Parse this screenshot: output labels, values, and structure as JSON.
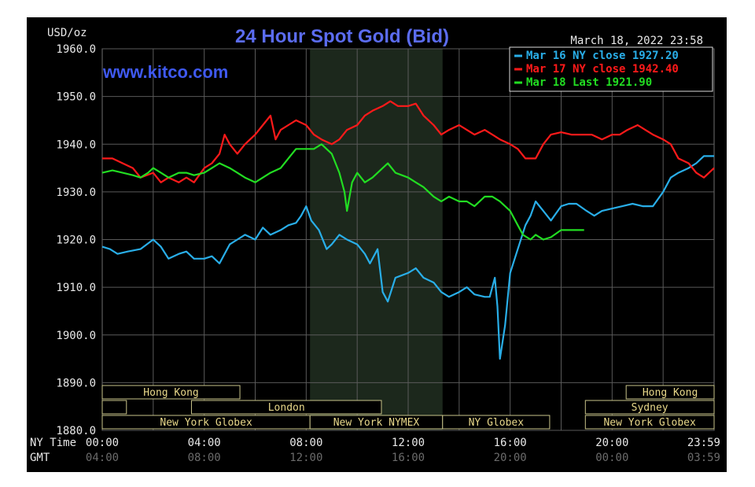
{
  "chart_data": {
    "type": "line",
    "title": "24 Hour Spot Gold (Bid)",
    "watermark": "www.kitco.com",
    "timestamp": "March 18, 2022 23:58",
    "ylabel": "USD/oz",
    "ylim": [
      1880,
      1960
    ],
    "yticks": [
      "1960.0",
      "1950.0",
      "1940.0",
      "1930.0",
      "1920.0",
      "1910.0",
      "1900.0",
      "1890.0",
      "1880.0"
    ],
    "xlim": [
      0,
      24
    ],
    "xticks": [
      {
        "x": 0,
        "ny": "00:00",
        "gmt": "04:00"
      },
      {
        "x": 4,
        "ny": "04:00",
        "gmt": "08:00"
      },
      {
        "x": 8,
        "ny": "08:00",
        "gmt": "12:00"
      },
      {
        "x": 12,
        "ny": "12:00",
        "gmt": "16:00"
      },
      {
        "x": 16,
        "ny": "16:00",
        "gmt": "20:00"
      },
      {
        "x": 20,
        "ny": "20:00",
        "gmt": "00:00"
      },
      {
        "x": 24,
        "ny": "23:59",
        "gmt": "03:59"
      }
    ],
    "x_row_labels": {
      "ny": "NY Time",
      "gmt": "GMT"
    },
    "grid": true,
    "legend_position": "top-right",
    "series": [
      {
        "name": "Mar 16 NY close 1927.20",
        "color": "#29aee8",
        "points": [
          [
            0,
            1918.5
          ],
          [
            0.3,
            1918
          ],
          [
            0.6,
            1917
          ],
          [
            1,
            1917.5
          ],
          [
            1.5,
            1918
          ],
          [
            2,
            1920
          ],
          [
            2.3,
            1918.5
          ],
          [
            2.6,
            1916
          ],
          [
            3,
            1917
          ],
          [
            3.3,
            1917.5
          ],
          [
            3.6,
            1916
          ],
          [
            4,
            1916
          ],
          [
            4.3,
            1916.5
          ],
          [
            4.6,
            1915
          ],
          [
            5,
            1919
          ],
          [
            5.3,
            1920
          ],
          [
            5.6,
            1921
          ],
          [
            6,
            1920
          ],
          [
            6.3,
            1922.5
          ],
          [
            6.6,
            1921
          ],
          [
            7,
            1922
          ],
          [
            7.3,
            1923
          ],
          [
            7.6,
            1923.5
          ],
          [
            7.8,
            1925
          ],
          [
            8,
            1927
          ],
          [
            8.2,
            1924
          ],
          [
            8.5,
            1922
          ],
          [
            8.8,
            1918
          ],
          [
            9,
            1919
          ],
          [
            9.3,
            1921
          ],
          [
            9.6,
            1920
          ],
          [
            10,
            1919
          ],
          [
            10.3,
            1917
          ],
          [
            10.5,
            1915
          ],
          [
            10.8,
            1918
          ],
          [
            11,
            1909
          ],
          [
            11.2,
            1907
          ],
          [
            11.5,
            1912
          ],
          [
            12,
            1913
          ],
          [
            12.3,
            1914
          ],
          [
            12.6,
            1912
          ],
          [
            13,
            1911
          ],
          [
            13.3,
            1909
          ],
          [
            13.6,
            1908
          ],
          [
            14,
            1909
          ],
          [
            14.3,
            1910
          ],
          [
            14.6,
            1908.5
          ],
          [
            15,
            1908
          ],
          [
            15.2,
            1908
          ],
          [
            15.4,
            1912
          ],
          [
            15.5,
            1906
          ],
          [
            15.6,
            1895
          ],
          [
            15.8,
            1902
          ],
          [
            16,
            1913
          ],
          [
            16.3,
            1918
          ],
          [
            16.6,
            1923
          ],
          [
            16.8,
            1925
          ],
          [
            17,
            1928
          ],
          [
            17.3,
            1926
          ],
          [
            17.6,
            1924
          ],
          [
            18,
            1927
          ],
          [
            18.3,
            1927.5
          ],
          [
            18.6,
            1927.5
          ],
          [
            19,
            1926
          ],
          [
            19.3,
            1925
          ],
          [
            19.6,
            1926
          ],
          [
            20,
            1926.5
          ],
          [
            20.4,
            1927
          ],
          [
            20.8,
            1927.5
          ],
          [
            21.2,
            1927
          ],
          [
            21.6,
            1927
          ],
          [
            22,
            1930
          ],
          [
            22.3,
            1933
          ],
          [
            22.6,
            1934
          ],
          [
            23,
            1935
          ],
          [
            23.3,
            1936
          ],
          [
            23.6,
            1937.5
          ],
          [
            24,
            1937.5
          ]
        ]
      },
      {
        "name": "Mar 17 NY close 1942.40",
        "color": "#ff1a1a",
        "points": [
          [
            0,
            1937
          ],
          [
            0.4,
            1937
          ],
          [
            0.8,
            1936
          ],
          [
            1.2,
            1935
          ],
          [
            1.5,
            1933
          ],
          [
            2,
            1934
          ],
          [
            2.3,
            1932
          ],
          [
            2.6,
            1933
          ],
          [
            3,
            1932
          ],
          [
            3.3,
            1933
          ],
          [
            3.6,
            1932
          ],
          [
            4,
            1935
          ],
          [
            4.3,
            1936
          ],
          [
            4.6,
            1938
          ],
          [
            4.8,
            1942
          ],
          [
            5,
            1940
          ],
          [
            5.3,
            1938
          ],
          [
            5.6,
            1940
          ],
          [
            6,
            1942
          ],
          [
            6.3,
            1944
          ],
          [
            6.6,
            1946
          ],
          [
            6.8,
            1941
          ],
          [
            7,
            1943
          ],
          [
            7.3,
            1944
          ],
          [
            7.6,
            1945
          ],
          [
            8,
            1944
          ],
          [
            8.3,
            1942
          ],
          [
            8.6,
            1941
          ],
          [
            9,
            1940
          ],
          [
            9.3,
            1941
          ],
          [
            9.6,
            1943
          ],
          [
            10,
            1944
          ],
          [
            10.3,
            1946
          ],
          [
            10.6,
            1947
          ],
          [
            11,
            1948
          ],
          [
            11.3,
            1949
          ],
          [
            11.6,
            1948
          ],
          [
            12,
            1948
          ],
          [
            12.3,
            1948.5
          ],
          [
            12.6,
            1946
          ],
          [
            13,
            1944
          ],
          [
            13.3,
            1942
          ],
          [
            13.6,
            1943
          ],
          [
            14,
            1944
          ],
          [
            14.3,
            1943
          ],
          [
            14.6,
            1942
          ],
          [
            15,
            1943
          ],
          [
            15.3,
            1942
          ],
          [
            15.6,
            1941
          ],
          [
            16,
            1940
          ],
          [
            16.3,
            1939
          ],
          [
            16.6,
            1937
          ],
          [
            17,
            1937
          ],
          [
            17.3,
            1940
          ],
          [
            17.6,
            1942
          ],
          [
            18,
            1942.5
          ],
          [
            18.4,
            1942
          ],
          [
            18.8,
            1942
          ],
          [
            19.2,
            1942
          ],
          [
            19.6,
            1941
          ],
          [
            20,
            1942
          ],
          [
            20.3,
            1942
          ],
          [
            20.6,
            1943
          ],
          [
            21,
            1944
          ],
          [
            21.3,
            1943
          ],
          [
            21.6,
            1942
          ],
          [
            22,
            1941
          ],
          [
            22.3,
            1940
          ],
          [
            22.6,
            1937
          ],
          [
            23,
            1936
          ],
          [
            23.3,
            1934
          ],
          [
            23.6,
            1933
          ],
          [
            24,
            1935
          ]
        ]
      },
      {
        "name": "Mar 18 Last 1921.90",
        "color": "#22dd22",
        "points": [
          [
            0,
            1934
          ],
          [
            0.4,
            1934.5
          ],
          [
            0.8,
            1934
          ],
          [
            1.2,
            1933.5
          ],
          [
            1.5,
            1933
          ],
          [
            1.8,
            1934
          ],
          [
            2,
            1935
          ],
          [
            2.3,
            1934
          ],
          [
            2.6,
            1933
          ],
          [
            3,
            1934
          ],
          [
            3.3,
            1934
          ],
          [
            3.6,
            1933.5
          ],
          [
            4,
            1934
          ],
          [
            4.3,
            1935
          ],
          [
            4.6,
            1936
          ],
          [
            5,
            1935
          ],
          [
            5.3,
            1934
          ],
          [
            5.6,
            1933
          ],
          [
            6,
            1932
          ],
          [
            6.3,
            1933
          ],
          [
            6.6,
            1934
          ],
          [
            7,
            1935
          ],
          [
            7.3,
            1937
          ],
          [
            7.6,
            1939
          ],
          [
            8,
            1939
          ],
          [
            8.3,
            1939
          ],
          [
            8.6,
            1940
          ],
          [
            9,
            1938
          ],
          [
            9.3,
            1934
          ],
          [
            9.5,
            1930
          ],
          [
            9.6,
            1926
          ],
          [
            9.8,
            1932
          ],
          [
            10,
            1934
          ],
          [
            10.3,
            1932
          ],
          [
            10.6,
            1933
          ],
          [
            11,
            1935
          ],
          [
            11.2,
            1936
          ],
          [
            11.5,
            1934
          ],
          [
            12,
            1933
          ],
          [
            12.3,
            1932
          ],
          [
            12.6,
            1931
          ],
          [
            13,
            1929
          ],
          [
            13.3,
            1928
          ],
          [
            13.6,
            1929
          ],
          [
            14,
            1928
          ],
          [
            14.3,
            1928
          ],
          [
            14.6,
            1927
          ],
          [
            15,
            1929
          ],
          [
            15.3,
            1929
          ],
          [
            15.6,
            1928
          ],
          [
            16,
            1926
          ],
          [
            16.3,
            1923
          ],
          [
            16.5,
            1921
          ],
          [
            16.8,
            1920
          ],
          [
            17,
            1921
          ],
          [
            17.3,
            1920
          ],
          [
            17.6,
            1920.5
          ],
          [
            18,
            1922
          ],
          [
            18.3,
            1922
          ],
          [
            18.6,
            1922
          ],
          [
            18.9,
            1922
          ]
        ]
      }
    ],
    "sessions": [
      {
        "label": "Hong Kong",
        "row": 0,
        "start": 0,
        "end": 5.4
      },
      {
        "label": "",
        "row": 1,
        "start": 0,
        "end": 0.95
      },
      {
        "label": "London",
        "row": 1,
        "start": 3.5,
        "end": 10.95
      },
      {
        "label": "New York Globex",
        "row": 2,
        "start": 0,
        "end": 8.15
      },
      {
        "label": "New York NYMEX",
        "row": 2,
        "start": 8.15,
        "end": 13.35
      },
      {
        "label": "NY Globex",
        "row": 2,
        "start": 13.35,
        "end": 17.55
      },
      {
        "label": "Hong Kong",
        "row": 0,
        "start": 20.55,
        "end": 24
      },
      {
        "label": "Sydney",
        "row": 1,
        "start": 18.95,
        "end": 24
      },
      {
        "label": "New York Globex",
        "row": 2,
        "start": 18.95,
        "end": 24
      }
    ],
    "shaded_window": [
      8.15,
      13.35
    ]
  }
}
